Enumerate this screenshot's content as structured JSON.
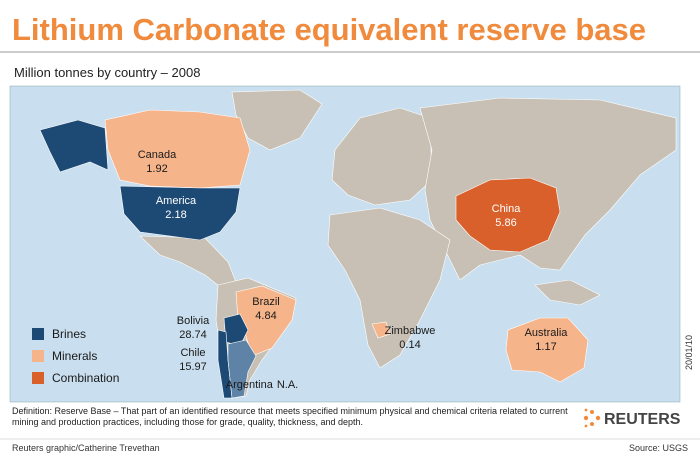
{
  "title": "Lithium Carbonate equivalent reserve base",
  "subtitle": "Million tonnes by country – 2008",
  "legend": [
    {
      "label": "Brines",
      "color": "#1d4a74"
    },
    {
      "label": "Minerals",
      "color": "#f6b48b"
    },
    {
      "label": "Combination",
      "color": "#d9602b"
    }
  ],
  "countries": [
    {
      "name": "Canada",
      "value": 1.92,
      "color": "#f6b48b"
    },
    {
      "name": "America",
      "value": 2.18,
      "color": "#1d4a74"
    },
    {
      "name": "Brazil",
      "value": 4.84,
      "color": "#f6b48b"
    },
    {
      "name": "Bolivia",
      "value": 28.74,
      "color": "#1d4a74"
    },
    {
      "name": "Chile",
      "value": 15.97,
      "color": "#1d4a74"
    },
    {
      "name": "Argentina",
      "value": "N.A.",
      "color": "#5f83a6"
    },
    {
      "name": "China",
      "value": 5.86,
      "color": "#d9602b"
    },
    {
      "name": "Zimbabwe",
      "value": 0.14,
      "color": "#f6b48b"
    },
    {
      "name": "Australia",
      "value": 1.17,
      "color": "#f6b48b"
    }
  ],
  "date": "20/01/10",
  "definition": "Definition: Reserve Base – That part of an identified resource that meets specified minimum physical and chemical criteria related to current mining and production practices, including those for grade, quality, thickness, and depth.",
  "logo": "REUTERS",
  "credit": "Reuters graphic/Catherine Trevethan",
  "source": "Source: USGS"
}
